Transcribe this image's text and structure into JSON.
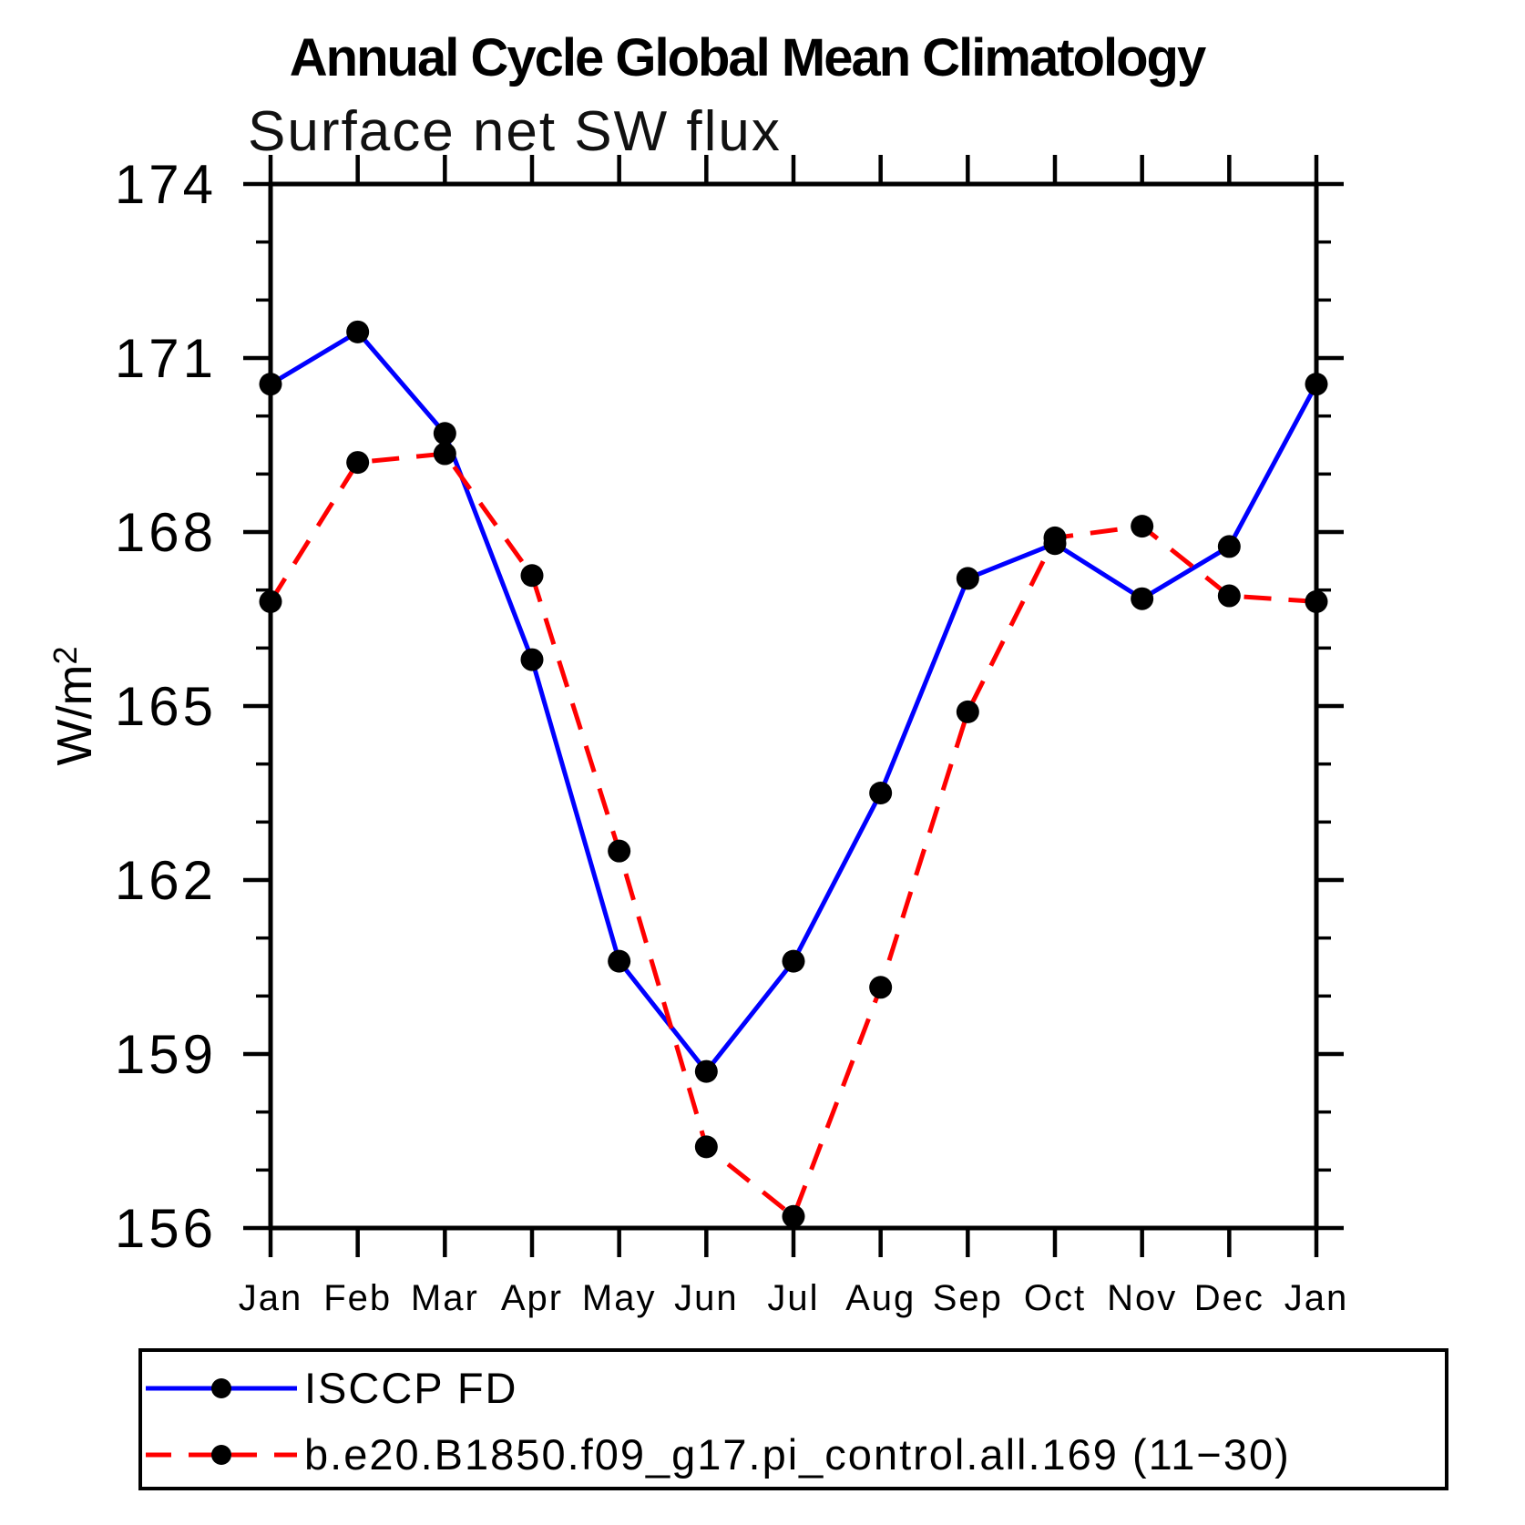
{
  "title": "Annual Cycle Global Mean Climatology",
  "subtitle": "Surface net SW flux",
  "y_axis_title": {
    "base": "W/m",
    "sup": "2"
  },
  "axis_color": "#000000",
  "chart_data": {
    "type": "line",
    "title": "Annual Cycle Global Mean Climatology",
    "subtitle": "Surface net SW flux",
    "ylabel": "W/m²",
    "xlabel": "",
    "grid": false,
    "legend_position": "bottom",
    "ylim": [
      156,
      174
    ],
    "yticks": [
      156,
      159,
      162,
      165,
      168,
      171,
      174
    ],
    "y_minor_step": 1,
    "categories": [
      "Jan",
      "Feb",
      "Mar",
      "Apr",
      "May",
      "Jun",
      "Jul",
      "Aug",
      "Sep",
      "Oct",
      "Nov",
      "Dec",
      "Jan"
    ],
    "series": [
      {
        "name": "ISCCP FD",
        "color": "#0000ff",
        "line_style": "solid",
        "marker": "filled-circle",
        "marker_color": "#000000",
        "values": [
          170.55,
          171.45,
          169.7,
          165.8,
          160.6,
          158.7,
          160.6,
          163.5,
          167.2,
          167.8,
          166.85,
          167.75,
          170.55
        ]
      },
      {
        "name": "b.e20.B1850.f09_g17.pi_control.all.169 (11−30)",
        "color": "#ff0000",
        "line_style": "dashed",
        "marker": "filled-circle",
        "marker_color": "#000000",
        "values": [
          166.8,
          169.2,
          169.35,
          167.25,
          162.5,
          157.4,
          156.2,
          160.15,
          164.9,
          167.9,
          168.1,
          166.9,
          166.8
        ]
      }
    ]
  }
}
